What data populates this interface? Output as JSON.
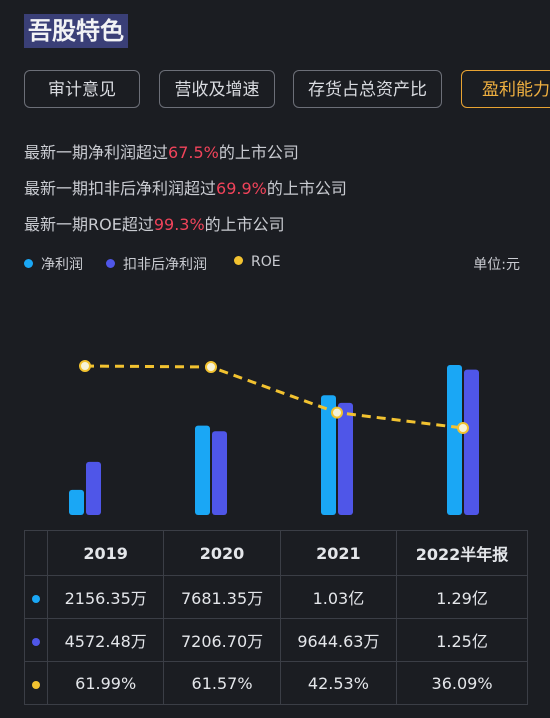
{
  "header": {
    "title": "吾股特色"
  },
  "tabs": [
    {
      "label": "审计意见",
      "active": false
    },
    {
      "label": "营收及增速",
      "active": false
    },
    {
      "label": "存货占总资产比",
      "active": false
    },
    {
      "label": "盈利能力",
      "active": true
    }
  ],
  "stats": [
    {
      "prefix": "最新一期净利润超过",
      "value": "67.5%",
      "suffix": "的上市公司"
    },
    {
      "prefix": "最新一期扣非后净利润超过",
      "value": "69.9%",
      "suffix": "的上市公司"
    },
    {
      "prefix": "最新一期ROE超过",
      "value": "99.3%",
      "suffix": "的上市公司"
    }
  ],
  "unit_label": "单位:元",
  "colors": {
    "net_profit": "#1aa7f5",
    "deducted": "#4f56e8",
    "roe": "#f2c230",
    "highlight": "#f0435a",
    "accent": "#e8a332"
  },
  "chart_data": {
    "type": "bar",
    "categories": [
      "2019",
      "2020",
      "2021",
      "2022半年报"
    ],
    "series": [
      {
        "name": "净利润",
        "values": [
          21563500,
          76813500,
          103000000,
          129000000
        ],
        "display": [
          "2156.35万",
          "7681.35万",
          "1.03亿",
          "1.29亿"
        ],
        "color": "#1aa7f5"
      },
      {
        "name": "扣非后净利润",
        "values": [
          45724800,
          72067000,
          96446300,
          125000000
        ],
        "display": [
          "4572.48万",
          "7206.70万",
          "9644.63万",
          "1.25亿"
        ],
        "color": "#4f56e8"
      },
      {
        "name": "ROE",
        "type": "line",
        "values": [
          61.99,
          61.57,
          42.53,
          36.09
        ],
        "display": [
          "61.99%",
          "61.57%",
          "42.53%",
          "36.09%"
        ],
        "color": "#f2c230"
      }
    ]
  }
}
